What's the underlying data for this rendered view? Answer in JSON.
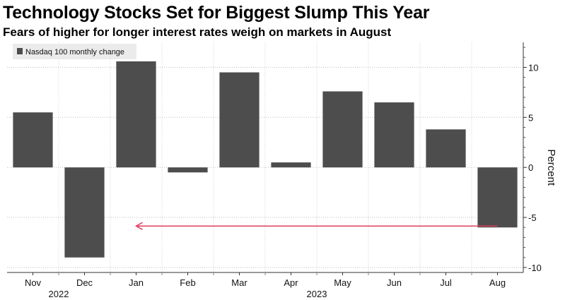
{
  "title": "Technology Stocks Set for Biggest Slump This Year",
  "subtitle": "Fears of higher for longer interest rates weigh on markets in August",
  "chart_data": {
    "type": "bar",
    "series": [
      {
        "name": "Nasdaq 100 monthly change",
        "color": "#4d4d4d",
        "values": [
          5.5,
          -9.0,
          10.6,
          -0.5,
          9.5,
          0.5,
          7.6,
          6.5,
          3.8,
          -6.0
        ]
      }
    ],
    "categories": [
      "Nov",
      "Dec",
      "Jan",
      "Feb",
      "Mar",
      "Apr",
      "May",
      "Jun",
      "Jul",
      "Aug"
    ],
    "year_labels": [
      {
        "label": "2022",
        "category_index": 0.5
      },
      {
        "label": "2023",
        "category_index": 5.5
      }
    ],
    "ylabel": "Percent",
    "ylim": [
      -10.5,
      12.5
    ],
    "yticks": [
      10,
      5,
      0,
      -5,
      -10
    ],
    "grid": true,
    "legend": "top-left",
    "annotation": {
      "type": "arrow",
      "color": "#e04060",
      "y": -6.0,
      "from_category": 9,
      "to_category": 2
    }
  }
}
